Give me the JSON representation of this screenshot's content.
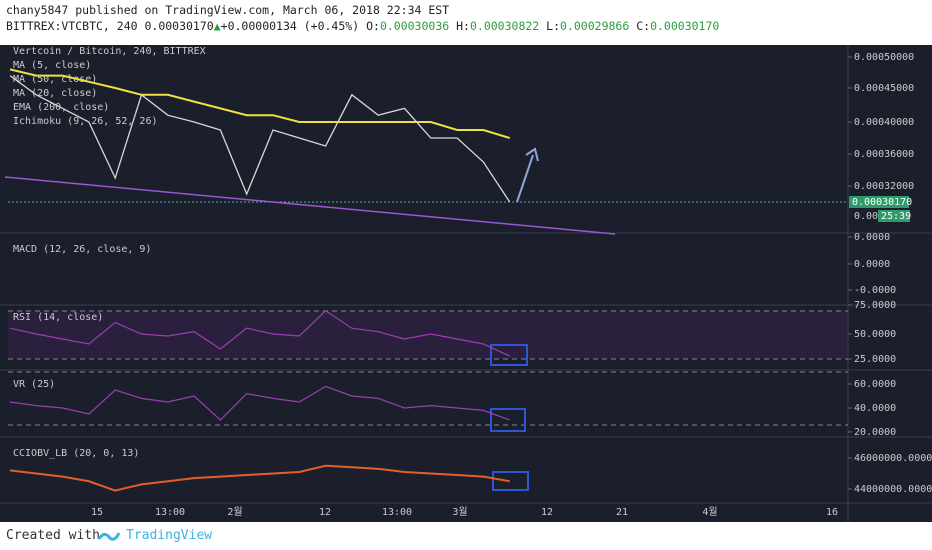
{
  "header": {
    "line1": "chany5847 published on TradingView.com, March 06, 2018 22:34 EST",
    "symbol": "BITTREX:VTCBTC, 240 0.00030170",
    "change": "+0.00000134 (+0.45%)",
    "o_label": "O:",
    "o": "0.00030036",
    "h_label": "H:",
    "h": "0.00030822",
    "l_label": "L:",
    "l": "0.00029866",
    "c_label": "C:",
    "c": "0.00030170"
  },
  "main": {
    "legend": [
      "Vertcoin / Bitcoin, 240, BITTREX",
      "MA (5, close)",
      "MA (50, close)",
      "MA (20, close)",
      "EMA (200, close)",
      "Ichimoku (9, 26, 52, 26)"
    ],
    "ticks": [
      {
        "value": 0.0005,
        "label": "0.00050000"
      },
      {
        "value": 0.00045,
        "label": "0.00045000"
      },
      {
        "value": 0.0004,
        "label": "0.00040000"
      },
      {
        "value": 0.00036,
        "label": "0.00036000"
      },
      {
        "value": 0.00032,
        "label": "0.00032000"
      }
    ],
    "last_price": "0.00030170",
    "countdown_price": "0.000",
    "countdown": "25:39",
    "close": [
      0.00047,
      0.00044,
      0.00042,
      0.0004,
      0.00033,
      0.00044,
      0.00041,
      0.0004,
      0.00039,
      0.00031,
      0.00039,
      0.00038,
      0.00037,
      0.00044,
      0.00041,
      0.00042,
      0.00038,
      0.00038,
      0.00035,
      0.0003
    ],
    "ema": [
      0.00048,
      0.00047,
      0.00047,
      0.00046,
      0.00045,
      0.00044,
      0.00044,
      0.00043,
      0.00042,
      0.00041,
      0.00041,
      0.0004,
      0.0004,
      0.0004,
      0.0004,
      0.0004,
      0.0004,
      0.00039,
      0.00039,
      0.00038
    ]
  },
  "macd": {
    "legend": "MACD (12, 26, close, 9)",
    "ticks": [
      "0.0000",
      "0.0000",
      "-0.0000"
    ]
  },
  "rsi": {
    "legend": "RSI (14, close)",
    "ticks": [
      {
        "value": 75,
        "label": "75.0000"
      },
      {
        "value": 50,
        "label": "50.0000"
      },
      {
        "value": 25,
        "label": "25.0000"
      }
    ],
    "values": [
      55,
      50,
      45,
      40,
      60,
      50,
      48,
      52,
      35,
      55,
      50,
      48,
      70,
      55,
      52,
      45,
      50,
      45,
      40,
      28
    ]
  },
  "vr": {
    "legend": "VR (25)",
    "ticks": [
      {
        "value": 60,
        "label": "60.0000"
      },
      {
        "value": 40,
        "label": "40.0000"
      },
      {
        "value": 20,
        "label": "20.0000"
      }
    ],
    "values": [
      45,
      42,
      40,
      35,
      55,
      48,
      45,
      50,
      30,
      52,
      48,
      45,
      58,
      50,
      48,
      40,
      42,
      40,
      38,
      30
    ]
  },
  "cciobv": {
    "legend": "CCIOBV_LB (20, 0, 13)",
    "ticks": [
      {
        "value": 46000000,
        "label": "46000000.0000"
      },
      {
        "value": 44000000,
        "label": "44000000.0000"
      }
    ],
    "values": [
      45200000,
      45000000,
      44800000,
      44500000,
      43900000,
      44300000,
      44500000,
      44700000,
      44800000,
      44900000,
      45000000,
      45100000,
      45500000,
      45400000,
      45300000,
      45100000,
      45000000,
      44900000,
      44800000,
      44500000
    ]
  },
  "xaxis": [
    "15",
    "13:00",
    "2월",
    "12",
    "13:00",
    "3월",
    "12",
    "21",
    "4월",
    "16"
  ],
  "footer": {
    "created": "Created with",
    "brand": "TradingView"
  }
}
